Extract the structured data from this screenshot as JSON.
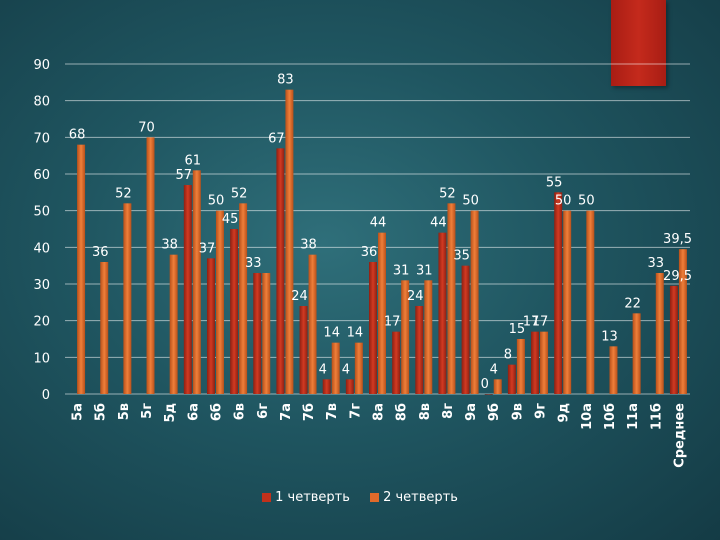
{
  "legend_swatch_colors": [
    "#c0311b",
    "#e06a2a"
  ],
  "chart_data": {
    "type": "bar",
    "ylim": [
      0,
      90
    ],
    "yticks": [
      0,
      10,
      20,
      30,
      40,
      50,
      60,
      70,
      80,
      90
    ],
    "grid": true,
    "legend_position": "bottom",
    "categories": [
      "5а",
      "5б",
      "5в",
      "5г",
      "5д",
      "6а",
      "6б",
      "6в",
      "6г",
      "7а",
      "7б",
      "7в",
      "7г",
      "8а",
      "8б",
      "8в",
      "8г",
      "9а",
      "9б",
      "9в",
      "9г",
      "9д",
      "10а",
      "10б",
      "11а",
      "11б",
      "Среднее"
    ],
    "series": [
      {
        "name": "1 четверть",
        "color": "#c0311b",
        "values": [
          null,
          null,
          null,
          null,
          null,
          57,
          37,
          45,
          33,
          67,
          24,
          4,
          4,
          36,
          17,
          24,
          44,
          35,
          0,
          8,
          17,
          55,
          null,
          null,
          null,
          null,
          29.5
        ],
        "labels": [
          "",
          "",
          "",
          "",
          "",
          "57",
          "37",
          "45",
          "33",
          "67",
          "24",
          "4",
          "4",
          "36",
          "17",
          "24",
          "44",
          "35",
          "0",
          "8",
          "17",
          "55",
          "",
          "",
          "",
          "",
          "29,5"
        ]
      },
      {
        "name": "2 четверть",
        "color": "#e06a2a",
        "values": [
          68,
          36,
          52,
          70,
          38,
          61,
          50,
          52,
          33,
          83,
          38,
          14,
          14,
          44,
          31,
          31,
          52,
          50,
          4,
          15,
          17,
          50,
          50,
          13,
          22,
          33,
          39.5
        ],
        "labels": [
          "68",
          "36",
          "52",
          "70",
          "38",
          "61",
          "50",
          "52",
          "",
          "83",
          "38",
          "14",
          "14",
          "44",
          "31",
          "31",
          "52",
          "50",
          "4",
          "15",
          "17",
          "50",
          "50",
          "13",
          "22",
          "33",
          "39,5"
        ]
      }
    ]
  }
}
